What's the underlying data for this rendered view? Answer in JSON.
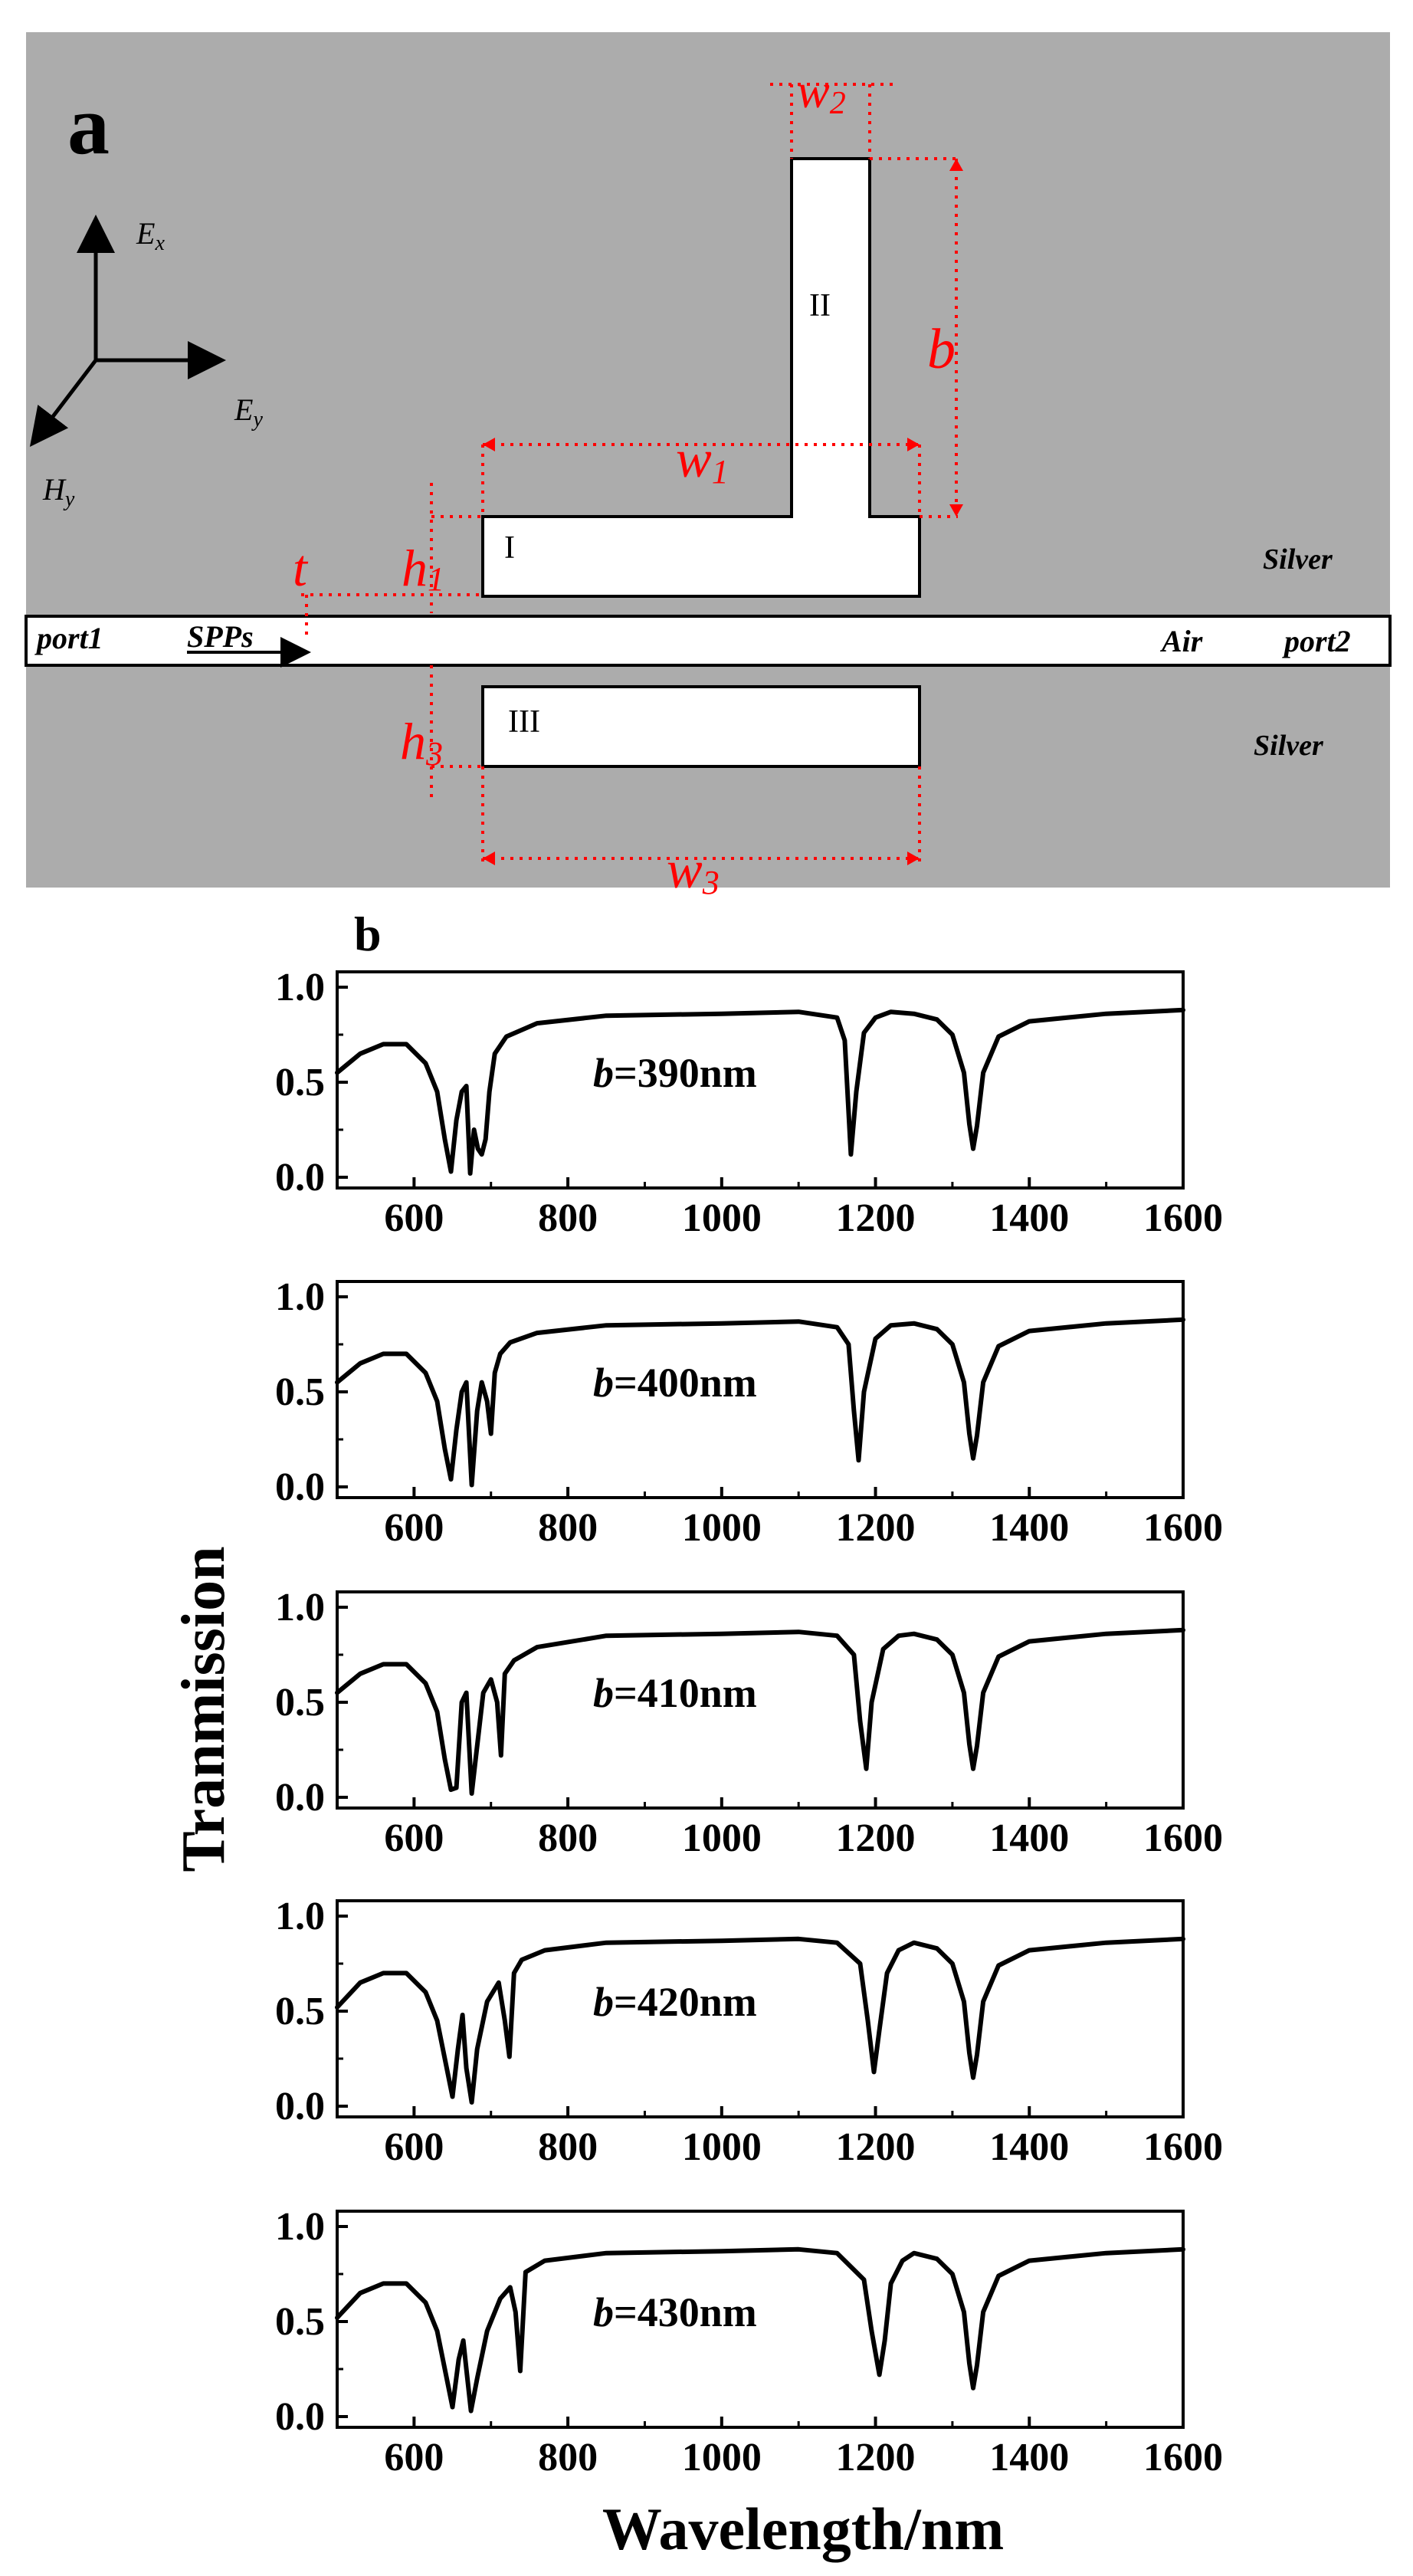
{
  "panel_a": {
    "label": "a",
    "axes": {
      "ex": "E",
      "ex_sub": "x",
      "ey": "E",
      "ey_sub": "y",
      "hy": "H",
      "hy_sub": "y"
    },
    "cavities": {
      "c1": "I",
      "c2": "II",
      "c3": "III"
    },
    "dimensions": {
      "w2": "w",
      "w2_sub": "2",
      "w1": "w",
      "w1_sub": "1",
      "w3": "w",
      "w3_sub": "3",
      "b": "b",
      "h1": "h",
      "h1_sub": "1",
      "h3": "h",
      "h3_sub": "3",
      "t": "t"
    },
    "regions": {
      "silver_top": "Silver",
      "silver_bottom": "Silver",
      "air": "Air"
    },
    "ports": {
      "port1": "port1",
      "port2": "port2",
      "spps": "SPPs"
    },
    "colors": {
      "metal": "#acacac",
      "dimension": "#ff0000",
      "waveguide": "#ffffff"
    }
  },
  "panel_b": {
    "label": "b",
    "ylabel": "Tranmission",
    "xlabel": "Wavelength/nm",
    "ytick_labels": [
      "0.0",
      "0.5",
      "1.0"
    ],
    "xtick_labels": [
      "600",
      "800",
      "1000",
      "1200",
      "1400",
      "1600"
    ]
  },
  "chart_data": [
    {
      "type": "line",
      "annotation_prefix": "b",
      "annotation_value": "=390nm",
      "xlim": [
        500,
        1600
      ],
      "ylim": [
        0,
        1
      ],
      "x": [
        500,
        530,
        560,
        590,
        615,
        630,
        640,
        648,
        655,
        662,
        668,
        673,
        678,
        683,
        688,
        693,
        698,
        705,
        720,
        760,
        850,
        1000,
        1100,
        1150,
        1160,
        1168,
        1175,
        1185,
        1200,
        1220,
        1250,
        1280,
        1300,
        1315,
        1322,
        1327,
        1332,
        1340,
        1360,
        1400,
        1500,
        1600
      ],
      "y": [
        0.55,
        0.65,
        0.7,
        0.7,
        0.6,
        0.45,
        0.2,
        0.03,
        0.3,
        0.45,
        0.48,
        0.02,
        0.25,
        0.15,
        0.12,
        0.2,
        0.45,
        0.65,
        0.74,
        0.81,
        0.85,
        0.86,
        0.87,
        0.84,
        0.72,
        0.12,
        0.45,
        0.76,
        0.84,
        0.87,
        0.86,
        0.83,
        0.75,
        0.55,
        0.28,
        0.15,
        0.27,
        0.55,
        0.74,
        0.82,
        0.86,
        0.88
      ]
    },
    {
      "type": "line",
      "annotation_prefix": "b",
      "annotation_value": "=400nm",
      "xlim": [
        500,
        1600
      ],
      "ylim": [
        0,
        1
      ],
      "x": [
        500,
        530,
        560,
        590,
        615,
        630,
        640,
        648,
        655,
        662,
        668,
        675,
        682,
        688,
        695,
        700,
        705,
        712,
        725,
        760,
        850,
        1000,
        1100,
        1150,
        1165,
        1172,
        1178,
        1185,
        1200,
        1220,
        1250,
        1280,
        1300,
        1315,
        1322,
        1327,
        1332,
        1340,
        1360,
        1400,
        1500,
        1600
      ],
      "y": [
        0.55,
        0.65,
        0.7,
        0.7,
        0.6,
        0.45,
        0.2,
        0.04,
        0.3,
        0.5,
        0.55,
        0.01,
        0.4,
        0.55,
        0.45,
        0.28,
        0.6,
        0.7,
        0.76,
        0.81,
        0.85,
        0.86,
        0.87,
        0.84,
        0.75,
        0.4,
        0.14,
        0.5,
        0.78,
        0.85,
        0.86,
        0.83,
        0.75,
        0.55,
        0.28,
        0.15,
        0.27,
        0.55,
        0.74,
        0.82,
        0.86,
        0.88
      ]
    },
    {
      "type": "line",
      "annotation_prefix": "b",
      "annotation_value": "=410nm",
      "xlim": [
        500,
        1600
      ],
      "ylim": [
        0,
        1
      ],
      "x": [
        500,
        530,
        560,
        590,
        615,
        630,
        640,
        648,
        655,
        662,
        668,
        675,
        680,
        690,
        700,
        708,
        713,
        718,
        730,
        760,
        850,
        1000,
        1100,
        1150,
        1172,
        1180,
        1188,
        1195,
        1210,
        1230,
        1250,
        1280,
        1300,
        1315,
        1322,
        1327,
        1332,
        1340,
        1360,
        1400,
        1500,
        1600
      ],
      "y": [
        0.55,
        0.65,
        0.7,
        0.7,
        0.6,
        0.45,
        0.2,
        0.04,
        0.05,
        0.5,
        0.55,
        0.02,
        0.2,
        0.55,
        0.62,
        0.5,
        0.22,
        0.65,
        0.72,
        0.79,
        0.85,
        0.86,
        0.87,
        0.85,
        0.75,
        0.4,
        0.15,
        0.5,
        0.78,
        0.85,
        0.86,
        0.83,
        0.75,
        0.55,
        0.28,
        0.15,
        0.27,
        0.55,
        0.74,
        0.82,
        0.86,
        0.88
      ]
    },
    {
      "type": "line",
      "annotation_prefix": "b",
      "annotation_value": "=420nm",
      "xlim": [
        500,
        1600
      ],
      "ylim": [
        0,
        1
      ],
      "x": [
        500,
        530,
        560,
        590,
        615,
        630,
        640,
        650,
        657,
        663,
        668,
        675,
        682,
        695,
        710,
        718,
        724,
        730,
        740,
        770,
        850,
        1000,
        1100,
        1150,
        1180,
        1190,
        1198,
        1205,
        1215,
        1230,
        1250,
        1280,
        1300,
        1315,
        1322,
        1327,
        1332,
        1340,
        1360,
        1400,
        1500,
        1600
      ],
      "y": [
        0.52,
        0.65,
        0.7,
        0.7,
        0.6,
        0.45,
        0.25,
        0.05,
        0.3,
        0.48,
        0.2,
        0.02,
        0.3,
        0.55,
        0.65,
        0.45,
        0.26,
        0.7,
        0.77,
        0.82,
        0.86,
        0.87,
        0.88,
        0.86,
        0.75,
        0.45,
        0.18,
        0.4,
        0.7,
        0.82,
        0.86,
        0.83,
        0.75,
        0.55,
        0.28,
        0.15,
        0.27,
        0.55,
        0.74,
        0.82,
        0.86,
        0.88
      ]
    },
    {
      "type": "line",
      "annotation_prefix": "b",
      "annotation_value": "=430nm",
      "xlim": [
        500,
        1600
      ],
      "ylim": [
        0,
        1
      ],
      "x": [
        500,
        530,
        560,
        590,
        615,
        630,
        640,
        650,
        658,
        664,
        668,
        674,
        682,
        695,
        712,
        725,
        732,
        738,
        745,
        770,
        850,
        1000,
        1100,
        1150,
        1185,
        1195,
        1205,
        1212,
        1220,
        1235,
        1250,
        1280,
        1300,
        1315,
        1322,
        1327,
        1332,
        1340,
        1360,
        1400,
        1500,
        1600
      ],
      "y": [
        0.52,
        0.65,
        0.7,
        0.7,
        0.6,
        0.45,
        0.25,
        0.05,
        0.3,
        0.4,
        0.25,
        0.03,
        0.2,
        0.45,
        0.62,
        0.68,
        0.55,
        0.24,
        0.76,
        0.82,
        0.86,
        0.87,
        0.88,
        0.86,
        0.72,
        0.45,
        0.22,
        0.4,
        0.7,
        0.82,
        0.86,
        0.83,
        0.75,
        0.55,
        0.28,
        0.15,
        0.27,
        0.55,
        0.74,
        0.82,
        0.86,
        0.88
      ]
    }
  ]
}
